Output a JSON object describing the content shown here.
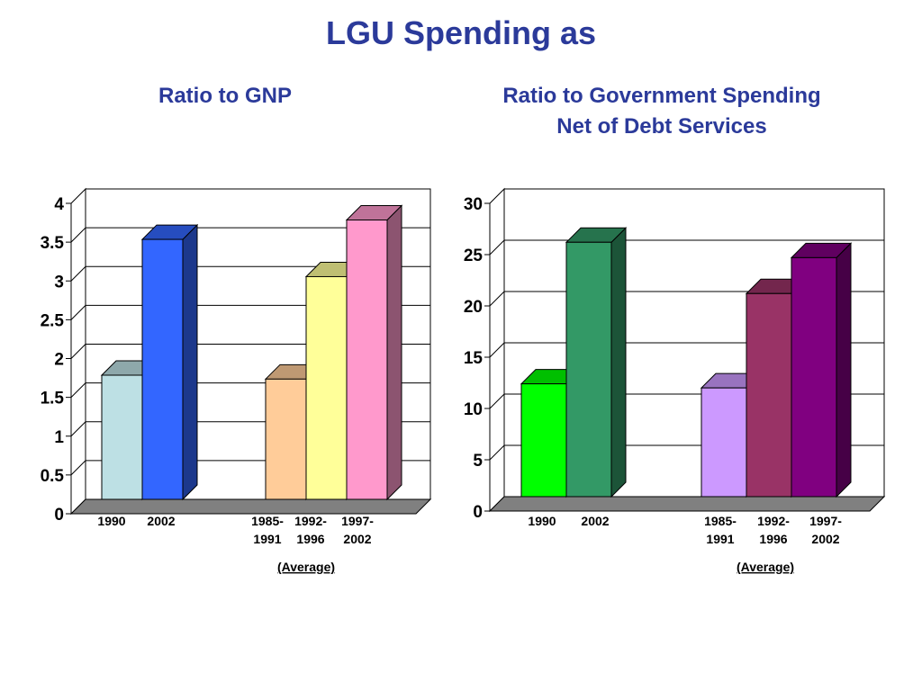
{
  "slide": {
    "title": "LGU Spending as"
  },
  "chart_data": [
    {
      "type": "bar",
      "title": "Ratio to GNP",
      "title_lines": [
        "Ratio to GNP"
      ],
      "categories": [
        "1990",
        "2002",
        "1985-1991",
        "1992-1996",
        "1997-2002"
      ],
      "category_lines": [
        [
          "1990"
        ],
        [
          "2002"
        ],
        [
          "1985-",
          "1991"
        ],
        [
          "1992-",
          "1996"
        ],
        [
          "1997-",
          "2002"
        ]
      ],
      "values": [
        1.6,
        3.35,
        1.55,
        2.87,
        3.6
      ],
      "colors": [
        "#bde0e4",
        "#3366ff",
        "#ffcc99",
        "#ffff99",
        "#ff99cc"
      ],
      "group_label": "(Average)",
      "ylim": [
        0,
        4
      ],
      "yticks": [
        "0",
        "0.5",
        "1",
        "1.5",
        "2",
        "2.5",
        "3",
        "3.5",
        "4"
      ],
      "grid": true,
      "xlabel": "",
      "ylabel": ""
    },
    {
      "type": "bar",
      "title": "Ratio to Government Spending Net of Debt Services",
      "title_lines": [
        "Ratio to Government Spending",
        "Net of Debt Services"
      ],
      "categories": [
        "1990",
        "2002",
        "1985-1991",
        "1992-1996",
        "1997-2002"
      ],
      "category_lines": [
        [
          "1990"
        ],
        [
          "2002"
        ],
        [
          "1985-",
          "1991"
        ],
        [
          "1992-",
          "1996"
        ],
        [
          "1997-",
          "2002"
        ]
      ],
      "values": [
        11,
        24.8,
        10.6,
        19.8,
        23.3
      ],
      "colors": [
        "#00ff00",
        "#339966",
        "#cc99ff",
        "#993366",
        "#800080"
      ],
      "group_label": "(Average)",
      "ylim": [
        0,
        30
      ],
      "yticks": [
        "0",
        "5",
        "10",
        "15",
        "20",
        "25",
        "30"
      ],
      "grid": true,
      "xlabel": "",
      "ylabel": ""
    }
  ]
}
